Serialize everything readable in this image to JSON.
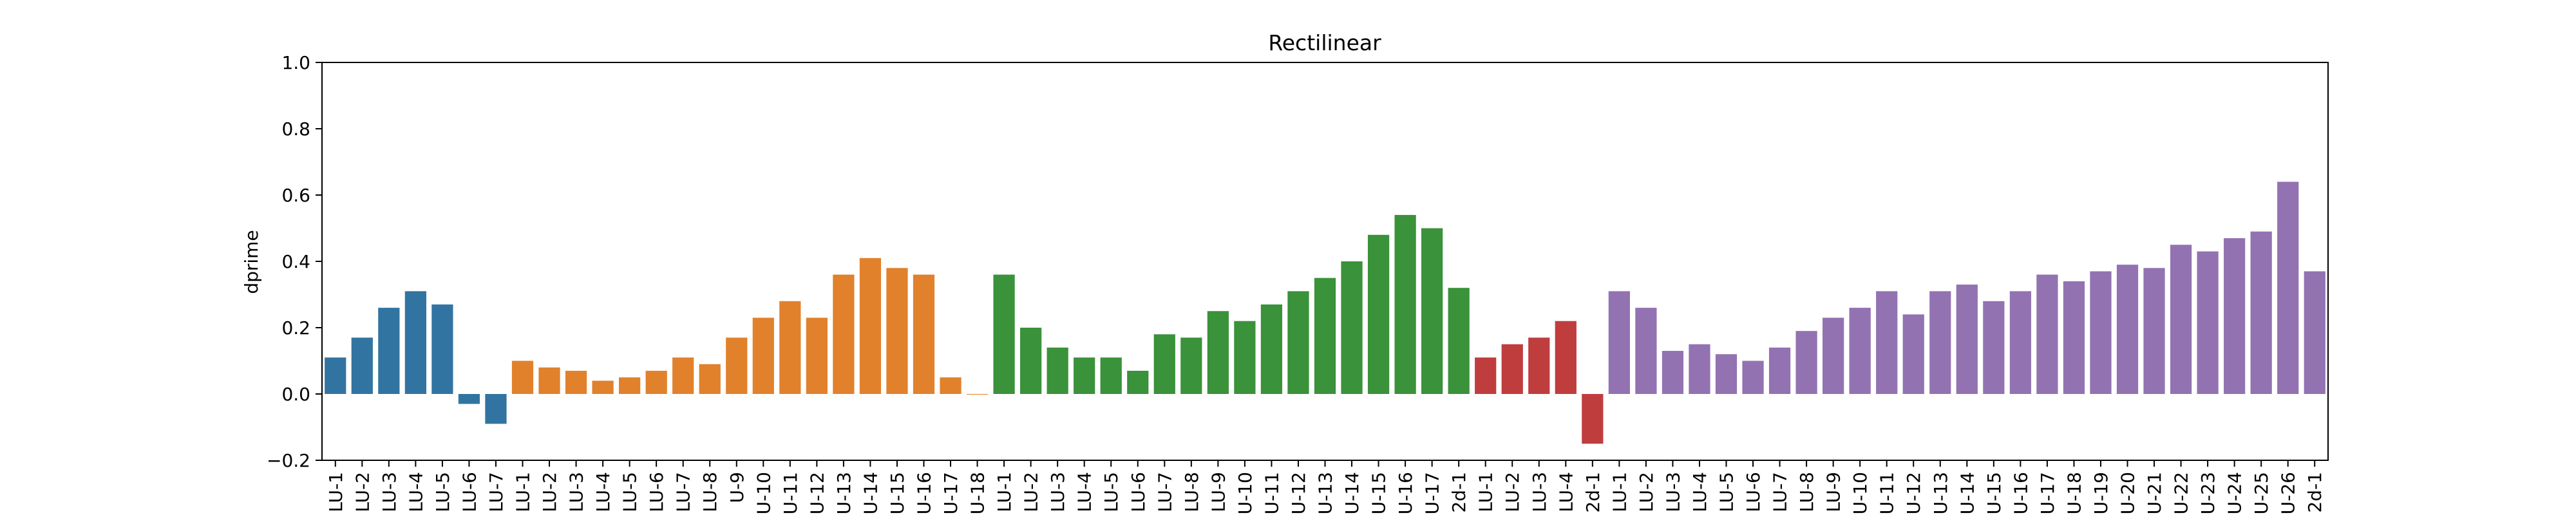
{
  "chart_data": {
    "type": "bar",
    "title": "Rectilinear",
    "xlabel": "",
    "ylabel": "dprime",
    "ylim": [
      -0.2,
      1.0
    ],
    "yticks": [
      "−0.2",
      "0.0",
      "0.2",
      "0.4",
      "0.6",
      "0.8",
      "1.0"
    ],
    "ytick_values": [
      -0.2,
      0.0,
      0.2,
      0.4,
      0.6,
      0.8,
      1.0
    ],
    "grid": false,
    "legend": "none",
    "colors": [
      "#3274a1",
      "#e1812c",
      "#3a923a",
      "#c03d3e",
      "#9372b2"
    ],
    "categories": [
      "LU-1",
      "LU-2",
      "LU-3",
      "LU-4",
      "LU-5",
      "LU-6",
      "LU-7",
      "LU-1",
      "LU-2",
      "LU-3",
      "LU-4",
      "LU-5",
      "LU-6",
      "LU-7",
      "LU-8",
      "U-9",
      "U-10",
      "U-11",
      "U-12",
      "U-13",
      "U-14",
      "U-15",
      "U-16",
      "U-17",
      "U-18",
      "LU-1",
      "LU-2",
      "LU-3",
      "LU-4",
      "LU-5",
      "LU-6",
      "LU-7",
      "LU-8",
      "LU-9",
      "U-10",
      "U-11",
      "U-12",
      "U-13",
      "U-14",
      "U-15",
      "U-16",
      "U-17",
      "2d-1",
      "LU-1",
      "LU-2",
      "LU-3",
      "LU-4",
      "2d-1",
      "LU-1",
      "LU-2",
      "LU-3",
      "LU-4",
      "LU-5",
      "LU-6",
      "LU-7",
      "LU-8",
      "LU-9",
      "U-10",
      "U-11",
      "U-12",
      "U-13",
      "U-14",
      "U-15",
      "U-16",
      "U-17",
      "U-18",
      "U-19",
      "U-20",
      "U-21",
      "U-22",
      "U-23",
      "U-24",
      "U-25",
      "U-26",
      "2d-1"
    ],
    "values": [
      0.11,
      0.17,
      0.26,
      0.31,
      0.27,
      -0.03,
      -0.09,
      0.1,
      0.08,
      0.07,
      0.04,
      0.05,
      0.07,
      0.11,
      0.09,
      0.17,
      0.23,
      0.28,
      0.23,
      0.36,
      0.41,
      0.38,
      0.36,
      0.05,
      0.0,
      0.36,
      0.2,
      0.14,
      0.11,
      0.11,
      0.07,
      0.18,
      0.17,
      0.25,
      0.22,
      0.27,
      0.31,
      0.35,
      0.4,
      0.48,
      0.54,
      0.5,
      0.32,
      0.11,
      0.15,
      0.17,
      0.22,
      -0.15,
      0.31,
      0.26,
      0.13,
      0.15,
      0.12,
      0.1,
      0.14,
      0.19,
      0.23,
      0.26,
      0.31,
      0.24,
      0.31,
      0.33,
      0.28,
      0.31,
      0.36,
      0.34,
      0.37,
      0.39,
      0.38,
      0.45,
      0.43,
      0.47,
      0.49,
      0.64,
      0.37
    ],
    "color_index": [
      0,
      0,
      0,
      0,
      0,
      0,
      0,
      1,
      1,
      1,
      1,
      1,
      1,
      1,
      1,
      1,
      1,
      1,
      1,
      1,
      1,
      1,
      1,
      1,
      1,
      2,
      2,
      2,
      2,
      2,
      2,
      2,
      2,
      2,
      2,
      2,
      2,
      2,
      2,
      2,
      2,
      2,
      2,
      3,
      3,
      3,
      3,
      3,
      4,
      4,
      4,
      4,
      4,
      4,
      4,
      4,
      4,
      4,
      4,
      4,
      4,
      4,
      4,
      4,
      4,
      4,
      4,
      4,
      4,
      4,
      4,
      4,
      4,
      4,
      4
    ]
  }
}
